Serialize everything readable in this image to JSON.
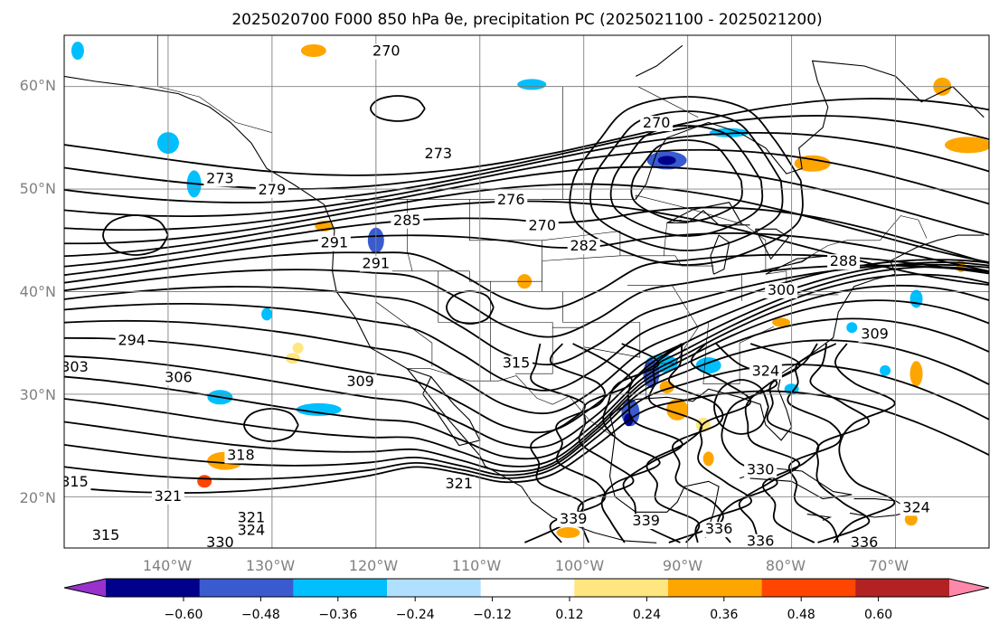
{
  "title": "2025020700 F000 850 hPa θe, precipitation PC (2025021100 - 2025021200)",
  "map": {
    "lat_labels": [
      "60°N",
      "50°N",
      "40°N",
      "30°N",
      "20°N"
    ],
    "lon_labels": [
      "140°W",
      "130°W",
      "120°W",
      "110°W",
      "100°W",
      "90°W",
      "80°W",
      "70°W"
    ],
    "extent": {
      "lon_min": -150,
      "lon_max": -61,
      "lat_min": 15,
      "lat_max": 65
    },
    "grid": true,
    "contour_field": "850 hPa θe",
    "contour_color": "#000000",
    "shaded_field": "precipitation PC",
    "contour_labels": [
      {
        "text": "270",
        "lon": -119,
        "lat": 63
      },
      {
        "text": "273",
        "lon": -135,
        "lat": 50.6
      },
      {
        "text": "279",
        "lon": -130,
        "lat": 49.5
      },
      {
        "text": "273",
        "lon": -114,
        "lat": 53
      },
      {
        "text": "276",
        "lon": -107,
        "lat": 48.5
      },
      {
        "text": "270",
        "lon": -104,
        "lat": 46
      },
      {
        "text": "270",
        "lon": -93,
        "lat": 56
      },
      {
        "text": "282",
        "lon": -100,
        "lat": 44
      },
      {
        "text": "285",
        "lon": -117,
        "lat": 46.5
      },
      {
        "text": "291",
        "lon": -124,
        "lat": 44.3
      },
      {
        "text": "291",
        "lon": -120,
        "lat": 42.3
      },
      {
        "text": "288",
        "lon": -75,
        "lat": 42.5
      },
      {
        "text": "300",
        "lon": -81,
        "lat": 39.7
      },
      {
        "text": "294",
        "lon": -143.5,
        "lat": 34.8
      },
      {
        "text": "303",
        "lon": -149,
        "lat": 32.2
      },
      {
        "text": "306",
        "lon": -139,
        "lat": 31.2
      },
      {
        "text": "309",
        "lon": -121.5,
        "lat": 30.8
      },
      {
        "text": "315",
        "lon": -106.5,
        "lat": 32.6
      },
      {
        "text": "318",
        "lon": -133,
        "lat": 23.6
      },
      {
        "text": "309",
        "lon": -72,
        "lat": 35.4
      },
      {
        "text": "324",
        "lon": -82.5,
        "lat": 31.8
      },
      {
        "text": "321",
        "lon": -112,
        "lat": 20.8
      },
      {
        "text": "321",
        "lon": -140,
        "lat": 19.6
      },
      {
        "text": "321",
        "lon": -132,
        "lat": 17.5
      },
      {
        "text": "324",
        "lon": -132,
        "lat": 16.3
      },
      {
        "text": "315",
        "lon": -146,
        "lat": 15.8
      },
      {
        "text": "330",
        "lon": -135,
        "lat": 15.1
      },
      {
        "text": "315",
        "lon": -149,
        "lat": 21
      },
      {
        "text": "339",
        "lon": -101,
        "lat": 17.4
      },
      {
        "text": "339",
        "lon": -94,
        "lat": 17.2
      },
      {
        "text": "336",
        "lon": -87,
        "lat": 16.4
      },
      {
        "text": "336",
        "lon": -83,
        "lat": 15.2
      },
      {
        "text": "336",
        "lon": -73,
        "lat": 15.1
      },
      {
        "text": "330",
        "lon": -83,
        "lat": 22.2
      },
      {
        "text": "324",
        "lon": -68,
        "lat": 18.5
      }
    ]
  },
  "colorbar": {
    "ticks": [
      "−0.60",
      "−0.48",
      "−0.36",
      "−0.24",
      "−0.12",
      "0.12",
      "0.24",
      "0.36",
      "0.48",
      "0.60"
    ],
    "colors": [
      "#9932cc",
      "#00008b",
      "#3a5bd0",
      "#00bfff",
      "#b0e0ff",
      "#ffffff",
      "#ffe680",
      "#ffa500",
      "#ff4500",
      "#b22222",
      "#ff88aa"
    ],
    "extend": "both"
  },
  "shaded_regions": [
    {
      "lon": -92,
      "lat": 52.8,
      "rx": 22,
      "ry": 10,
      "color": "#3a5bd0"
    },
    {
      "lon": -92,
      "lat": 52.8,
      "rx": 10,
      "ry": 5,
      "color": "#00008b"
    },
    {
      "lon": -86,
      "lat": 55.5,
      "rx": 22,
      "ry": 5,
      "color": "#00bfff"
    },
    {
      "lon": -140,
      "lat": 54.5,
      "rx": 12,
      "ry": 12,
      "color": "#00bfff"
    },
    {
      "lon": -137.5,
      "lat": 50.5,
      "rx": 8,
      "ry": 15,
      "color": "#00bfff"
    },
    {
      "lon": -120,
      "lat": 45,
      "rx": 9,
      "ry": 14,
      "color": "#3a5bd0"
    },
    {
      "lon": -148.7,
      "lat": 63.5,
      "rx": 7,
      "ry": 10,
      "color": "#00bfff"
    },
    {
      "lon": -105,
      "lat": 60.2,
      "rx": 16,
      "ry": 6,
      "color": "#00bfff"
    },
    {
      "lon": -125.5,
      "lat": 28.5,
      "rx": 25,
      "ry": 7,
      "color": "#00bfff"
    },
    {
      "lon": -135,
      "lat": 29.7,
      "rx": 14,
      "ry": 8,
      "color": "#00bfff"
    },
    {
      "lon": -92.5,
      "lat": 33,
      "rx": 18,
      "ry": 10,
      "color": "#00bfff"
    },
    {
      "lon": -93.5,
      "lat": 32,
      "rx": 9,
      "ry": 16,
      "color": "#3a5bd0"
    },
    {
      "lon": -95.5,
      "lat": 28.2,
      "rx": 10,
      "ry": 15,
      "color": "#3a5bd0"
    },
    {
      "lon": -95.7,
      "lat": 27.5,
      "rx": 5,
      "ry": 7,
      "color": "#00008b"
    },
    {
      "lon": -88,
      "lat": 32.8,
      "rx": 14,
      "ry": 9,
      "color": "#00bfff"
    },
    {
      "lon": -63,
      "lat": 54.3,
      "rx": 26,
      "ry": 9,
      "color": "#ffa500"
    },
    {
      "lon": -78,
      "lat": 52.5,
      "rx": 20,
      "ry": 9,
      "color": "#ffa500"
    },
    {
      "lon": -65.5,
      "lat": 60,
      "rx": 10,
      "ry": 10,
      "color": "#ffa500"
    },
    {
      "lon": -134.5,
      "lat": 23.5,
      "rx": 20,
      "ry": 10,
      "color": "#ffa500"
    },
    {
      "lon": -136.5,
      "lat": 21.5,
      "rx": 8,
      "ry": 7,
      "color": "#ff4500"
    },
    {
      "lon": -126,
      "lat": 63.5,
      "rx": 14,
      "ry": 7,
      "color": "#ffa500"
    },
    {
      "lon": -125,
      "lat": 46.4,
      "rx": 10,
      "ry": 6,
      "color": "#ffa500"
    },
    {
      "lon": -105.7,
      "lat": 41,
      "rx": 8,
      "ry": 8,
      "color": "#ffa500"
    },
    {
      "lon": -91,
      "lat": 28.5,
      "rx": 12,
      "ry": 12,
      "color": "#ffa500"
    },
    {
      "lon": -88.5,
      "lat": 27,
      "rx": 8,
      "ry": 8,
      "color": "#ffe680"
    },
    {
      "lon": -92,
      "lat": 30.7,
      "rx": 8,
      "ry": 7,
      "color": "#ffa500"
    },
    {
      "lon": -81,
      "lat": 37,
      "rx": 10,
      "ry": 5,
      "color": "#ffa500"
    },
    {
      "lon": -68,
      "lat": 32,
      "rx": 7,
      "ry": 14,
      "color": "#ffa500"
    },
    {
      "lon": -101.5,
      "lat": 16.5,
      "rx": 13,
      "ry": 6,
      "color": "#ffa500"
    },
    {
      "lon": -128,
      "lat": 33.5,
      "rx": 8,
      "ry": 6,
      "color": "#ffe680"
    },
    {
      "lon": -127.5,
      "lat": 34.5,
      "rx": 6,
      "ry": 6,
      "color": "#ffe680"
    },
    {
      "lon": -88,
      "lat": 23.7,
      "rx": 6,
      "ry": 8,
      "color": "#ffa500"
    },
    {
      "lon": -80,
      "lat": 30.5,
      "rx": 8,
      "ry": 6,
      "color": "#00bfff"
    },
    {
      "lon": -71,
      "lat": 32.3,
      "rx": 6,
      "ry": 6,
      "color": "#00bfff"
    },
    {
      "lon": -68,
      "lat": 39.3,
      "rx": 7,
      "ry": 10,
      "color": "#00bfff"
    },
    {
      "lon": -130.5,
      "lat": 37.8,
      "rx": 6,
      "ry": 7,
      "color": "#00bfff"
    },
    {
      "lon": -68.5,
      "lat": 17.8,
      "rx": 7,
      "ry": 7,
      "color": "#ffa500"
    },
    {
      "lon": -74.2,
      "lat": 36.5,
      "rx": 6,
      "ry": 6,
      "color": "#00bfff"
    },
    {
      "lon": -63.7,
      "lat": 42.5,
      "rx": 5,
      "ry": 7,
      "color": "#ffa500"
    }
  ]
}
